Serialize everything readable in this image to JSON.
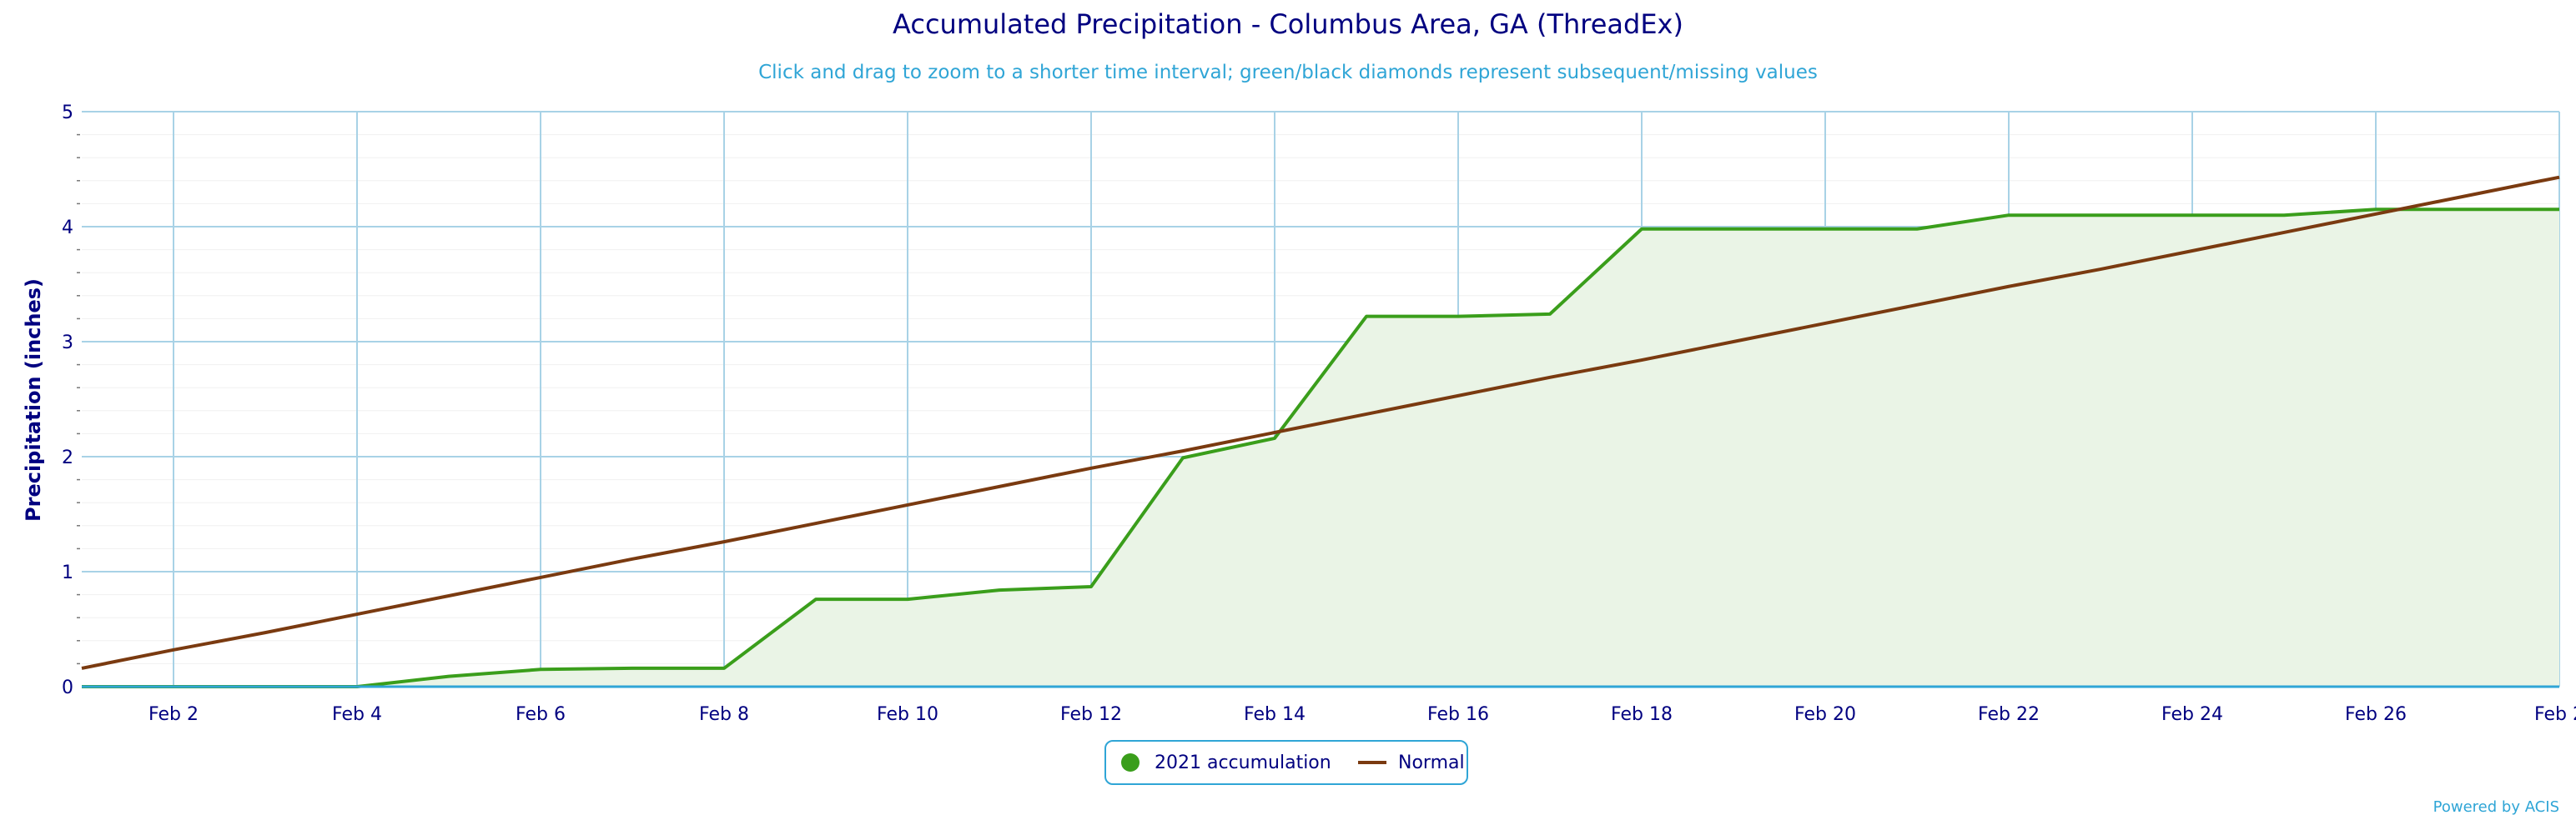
{
  "chart_data": {
    "type": "area",
    "title": "Accumulated Precipitation - Columbus Area, GA (ThreadEx)",
    "subtitle": "Click and drag to zoom to a shorter time interval; green/black diamonds represent subsequent/missing values",
    "xlabel": "",
    "ylabel": "Precipitation (inches)",
    "ylim": [
      0,
      5
    ],
    "y_ticks": [
      "0",
      "1",
      "2",
      "3",
      "4",
      "5"
    ],
    "x_ticks": [
      "Feb 2",
      "Feb 4",
      "Feb 6",
      "Feb 8",
      "Feb 10",
      "Feb 12",
      "Feb 14",
      "Feb 16",
      "Feb 18",
      "Feb 20",
      "Feb 22",
      "Feb 24",
      "Feb 26",
      "Feb 2"
    ],
    "x": [
      "Feb 1",
      "Feb 2",
      "Feb 3",
      "Feb 4",
      "Feb 5",
      "Feb 6",
      "Feb 7",
      "Feb 8",
      "Feb 9",
      "Feb 10",
      "Feb 11",
      "Feb 12",
      "Feb 13",
      "Feb 14",
      "Feb 15",
      "Feb 16",
      "Feb 17",
      "Feb 18",
      "Feb 19",
      "Feb 20",
      "Feb 21",
      "Feb 22",
      "Feb 23",
      "Feb 24",
      "Feb 25",
      "Feb 26",
      "Feb 27",
      "Feb 28"
    ],
    "grid": true,
    "legend_position": "bottom-center",
    "series": [
      {
        "name": "2021 accumulation",
        "color": "#3a9e1b",
        "fill": "#eaf4e6",
        "marker": "circle",
        "values": [
          0,
          0,
          0,
          0,
          0.09,
          0.15,
          0.16,
          0.16,
          0.76,
          0.76,
          0.84,
          0.87,
          1.99,
          2.16,
          3.22,
          3.22,
          3.24,
          3.98,
          3.98,
          3.98,
          3.98,
          4.1,
          4.1,
          4.1,
          4.1,
          4.15,
          4.15,
          4.15
        ]
      },
      {
        "name": "Normal",
        "color": "#7a3a10",
        "marker": "line",
        "values": [
          0.16,
          0.32,
          0.47,
          0.63,
          0.79,
          0.95,
          1.11,
          1.26,
          1.42,
          1.58,
          1.74,
          1.9,
          2.05,
          2.21,
          2.37,
          2.53,
          2.69,
          2.84,
          3.0,
          3.16,
          3.32,
          3.48,
          3.63,
          3.79,
          3.95,
          4.11,
          4.27,
          4.43
        ]
      }
    ]
  },
  "credit": "Powered by ACIS"
}
